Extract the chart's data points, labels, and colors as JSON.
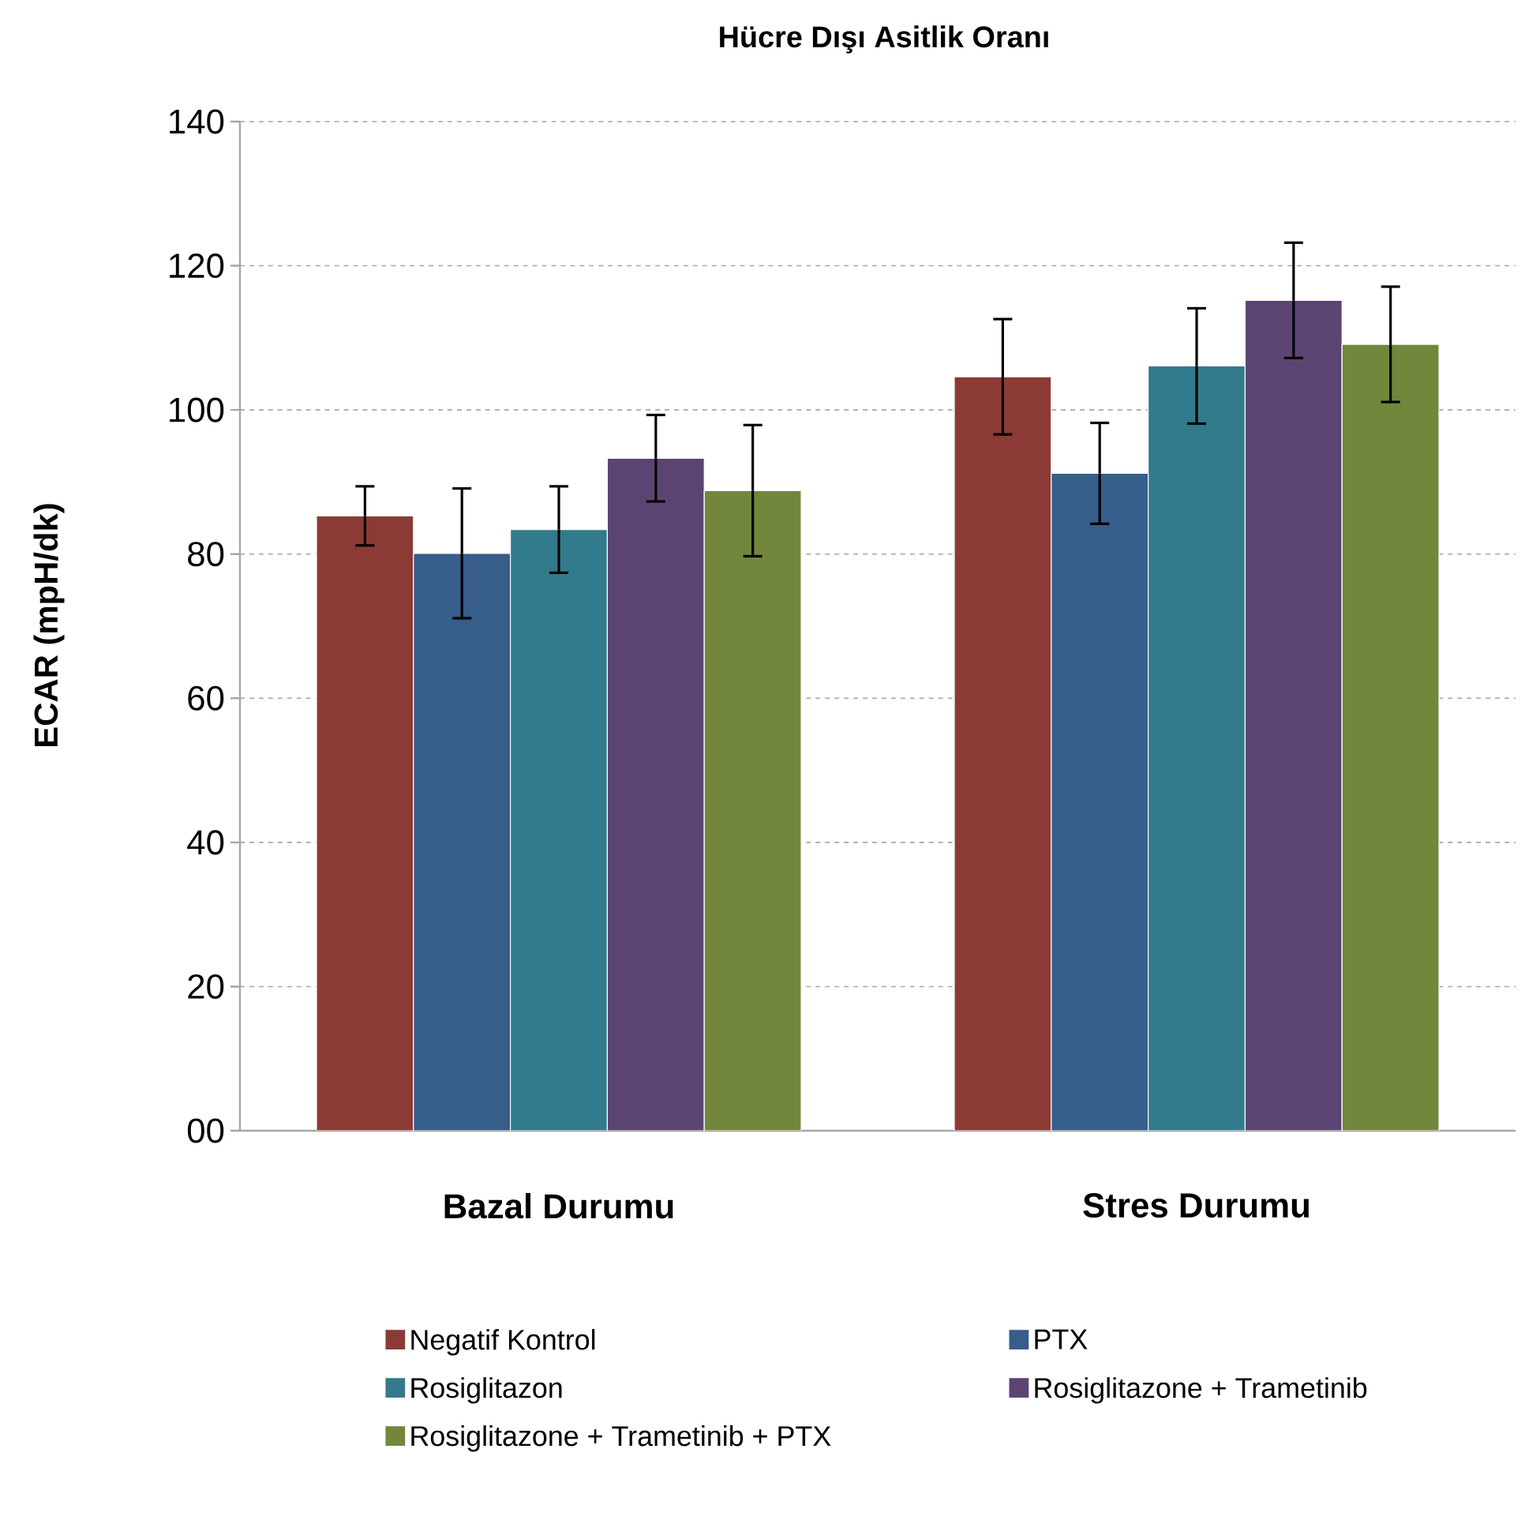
{
  "chart_data": {
    "type": "bar",
    "title": "Hücre Dışı Asitlik Oranı",
    "ylabel": "ECAR (mpH/dk)",
    "categories": [
      "Bazal Durumu",
      "Stres Durumu"
    ],
    "series": [
      {
        "name": "Negatif Kontrol",
        "color": "#8b3a36",
        "values": [
          85.3,
          104.6
        ],
        "errors": [
          4.1,
          8
        ]
      },
      {
        "name": "PTX",
        "color": "#375d8a",
        "values": [
          80.1,
          91.2
        ],
        "errors": [
          9,
          7
        ]
      },
      {
        "name": "Rosiglitazon",
        "color": "#317b8d",
        "values": [
          83.4,
          106.1
        ],
        "errors": [
          6,
          8
        ]
      },
      {
        "name": "Rosiglitazone + Trametinib",
        "color": "#5c4472",
        "values": [
          93.3,
          115.2
        ],
        "errors": [
          6,
          8
        ]
      },
      {
        "name": "Rosiglitazone + Trametinib + PTX",
        "color": "#72873c",
        "values": [
          88.8,
          109.1
        ],
        "errors": [
          9.1,
          8
        ]
      }
    ],
    "ylim": [
      0,
      140
    ],
    "yticks": [
      {
        "value": 0,
        "label": "00"
      },
      20,
      40,
      60,
      80,
      100,
      120,
      140
    ],
    "grid": "y",
    "legend": "bottom"
  }
}
